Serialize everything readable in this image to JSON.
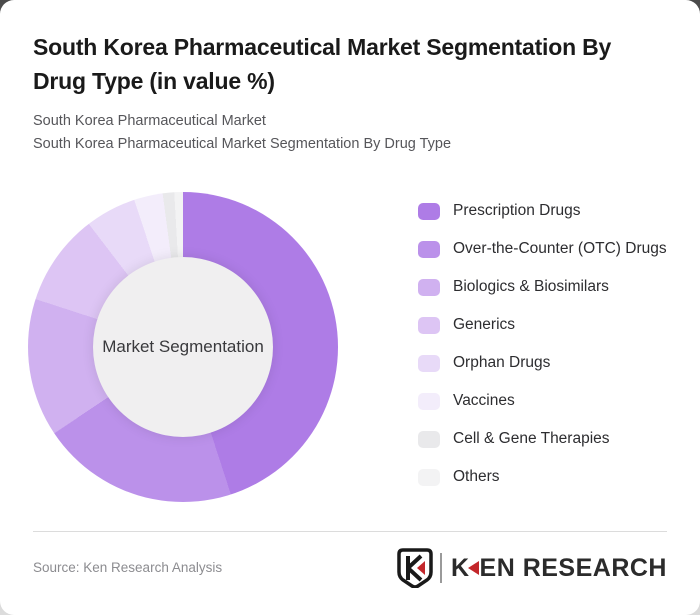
{
  "header": {
    "title": "South Korea Pharmaceutical Market Segmentation By Drug Type (in value %)",
    "subtitle1": "South Korea Pharmaceutical Market",
    "subtitle2": "South Korea Pharmaceutical Market Segmentation By Drug Type"
  },
  "chart_data": {
    "type": "pie",
    "subtype": "donut",
    "title": "South Korea Pharmaceutical Market Segmentation By Drug Type (in value %)",
    "center_label": "Market Segmentation",
    "values_unit": "%",
    "start_angle_deg": 0,
    "direction": "clockwise",
    "legend_position": "right",
    "hole_color": "#f0eff0",
    "segments": [
      {
        "label": "Prescription Drugs",
        "value": 45.0,
        "color": "#ae7ce6"
      },
      {
        "label": "Over-the-Counter (OTC) Drugs",
        "value": 20.6,
        "color": "#bb91ea"
      },
      {
        "label": "Biologics & Biosimilars",
        "value": 14.4,
        "color": "#d0b1f0"
      },
      {
        "label": "Generics",
        "value": 9.6,
        "color": "#ddc5f4"
      },
      {
        "label": "Orphan Drugs",
        "value": 5.3,
        "color": "#e8daf8"
      },
      {
        "label": "Vaccines",
        "value": 3.0,
        "color": "#f3edfb"
      },
      {
        "label": "Cell & Gene Therapies",
        "value": 1.2,
        "color": "#e9e9eb"
      },
      {
        "label": "Others",
        "value": 0.9,
        "color": "#f3f3f4"
      }
    ]
  },
  "footer": {
    "source": "Source: Ken Research Analysis",
    "logo": {
      "badge_letter": "K",
      "wordmark_first_letter": "K",
      "wordmark_rest": "EN RESEARCH",
      "accent_color": "#c3272b",
      "text_color": "#2b2b2b"
    }
  }
}
